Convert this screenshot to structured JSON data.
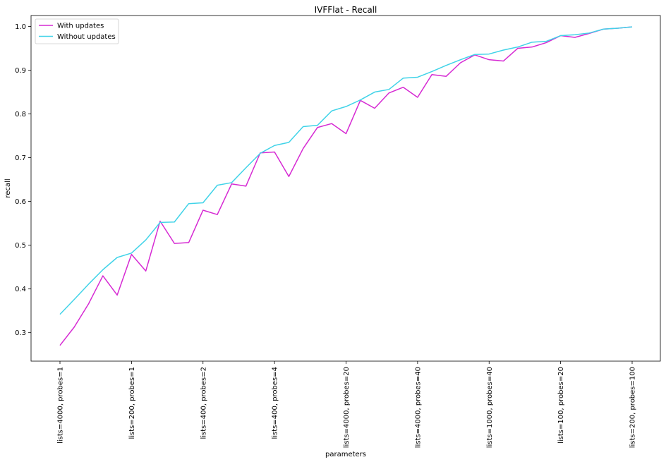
{
  "chart_data": {
    "type": "line",
    "title": "IVFFlat - Recall",
    "xlabel": "parameters",
    "ylabel": "recall",
    "ylim": [
      0.235,
      1.025
    ],
    "yticks": [
      0.3,
      0.4,
      0.5,
      0.6,
      0.7,
      0.8,
      0.9,
      1.0
    ],
    "ytick_labels": [
      "0.3",
      "0.4",
      "0.5",
      "0.6",
      "0.7",
      "0.8",
      "0.9",
      "1.0"
    ],
    "xtick_labels": [
      "lists=4000, probes=1",
      "lists=200, probes=1",
      "lists=400, probes=2",
      "lists=400, probes=4",
      "lists=4000, probes=20",
      "lists=4000, probes=40",
      "lists=1000, probes=40",
      "lists=100, probes=20",
      "lists=200, probes=100"
    ],
    "xtick_every": 5,
    "grid": false,
    "legend_position": "top-left",
    "series": [
      {
        "name": "With updates",
        "color": "#d62ad3",
        "values": [
          0.271,
          0.313,
          0.366,
          0.43,
          0.386,
          0.479,
          0.441,
          0.555,
          0.504,
          0.506,
          0.58,
          0.57,
          0.64,
          0.635,
          0.711,
          0.713,
          0.657,
          0.721,
          0.769,
          0.778,
          0.755,
          0.831,
          0.813,
          0.848,
          0.861,
          0.838,
          0.89,
          0.886,
          0.917,
          0.935,
          0.924,
          0.921,
          0.95,
          0.953,
          0.963,
          0.979,
          0.975,
          0.984,
          0.994,
          0.996,
          0.999
        ]
      },
      {
        "name": "Without updates",
        "color": "#40d3e8",
        "values": [
          0.342,
          0.376,
          0.411,
          0.444,
          0.472,
          0.482,
          0.512,
          0.552,
          0.553,
          0.595,
          0.597,
          0.637,
          0.643,
          0.677,
          0.71,
          0.728,
          0.735,
          0.771,
          0.774,
          0.807,
          0.817,
          0.832,
          0.85,
          0.856,
          0.882,
          0.884,
          0.897,
          0.911,
          0.924,
          0.936,
          0.937,
          0.946,
          0.953,
          0.964,
          0.966,
          0.979,
          0.981,
          0.985,
          0.994,
          0.996,
          0.999
        ]
      }
    ]
  }
}
